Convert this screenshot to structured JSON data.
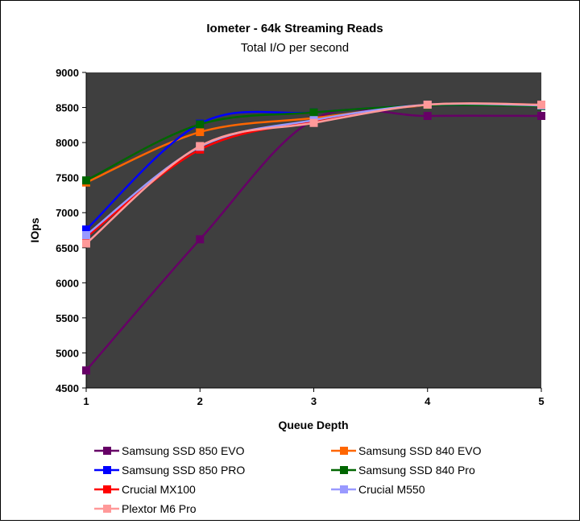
{
  "chart_data": {
    "type": "line",
    "title": "Iometer - 64k Streaming Reads",
    "subtitle": "Total I/O per second",
    "xlabel": "Queue Depth",
    "ylabel": "IOps",
    "x": [
      1,
      2,
      3,
      4,
      5
    ],
    "x_tick_labels": [
      "1",
      "2",
      "3",
      "4",
      "5"
    ],
    "ylim": [
      4500,
      9000
    ],
    "y_ticks": [
      4500,
      5000,
      5500,
      6000,
      6500,
      7000,
      7500,
      8000,
      8500,
      9000
    ],
    "y_tick_labels": [
      "4500",
      "5000",
      "5500",
      "6000",
      "6500",
      "7000",
      "7500",
      "8000",
      "8500",
      "9000"
    ],
    "grid": false,
    "plot_background": "#3f3f3f",
    "legend_position": "bottom",
    "series": [
      {
        "name": "Samsung SSD 850 EVO",
        "color": "#660066",
        "values": [
          4750,
          6620,
          8330,
          8380,
          8380
        ]
      },
      {
        "name": "Samsung SSD 840 EVO",
        "color": "#ff6600",
        "values": [
          7430,
          8150,
          8350,
          8530,
          8530
        ]
      },
      {
        "name": "Samsung SSD 850 PRO",
        "color": "#0000ff",
        "values": [
          6760,
          8270,
          8430,
          8530,
          8530
        ]
      },
      {
        "name": "Samsung SSD 840 Pro",
        "color": "#006600",
        "values": [
          7460,
          8260,
          8430,
          8530,
          8520
        ]
      },
      {
        "name": "Crucial MX100",
        "color": "#ff0000",
        "values": [
          6650,
          7900,
          8310,
          8540,
          8540
        ]
      },
      {
        "name": "Crucial M550",
        "color": "#9999ff",
        "values": [
          6680,
          7940,
          8320,
          8540,
          8530
        ]
      },
      {
        "name": "Plextor M6 Pro",
        "color": "#ff9999",
        "values": [
          6560,
          7950,
          8280,
          8540,
          8540
        ]
      }
    ]
  }
}
